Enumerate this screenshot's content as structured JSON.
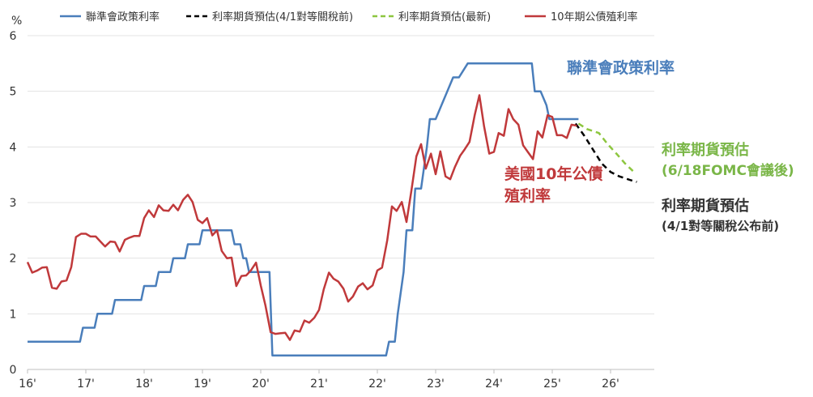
{
  "chart_data": {
    "type": "line",
    "ylabel": "%",
    "ylim": [
      0,
      6
    ],
    "yticks": [
      "0",
      "1",
      "2",
      "3",
      "4",
      "5",
      "6"
    ],
    "xlim": [
      2016,
      2026.75
    ],
    "xticks": [
      {
        "x": 2016,
        "label": "16'"
      },
      {
        "x": 2017,
        "label": "17'"
      },
      {
        "x": 2018,
        "label": "18'"
      },
      {
        "x": 2019,
        "label": "19'"
      },
      {
        "x": 2020,
        "label": "20'"
      },
      {
        "x": 2021,
        "label": "21'"
      },
      {
        "x": 2022,
        "label": "22'"
      },
      {
        "x": 2023,
        "label": "23'"
      },
      {
        "x": 2024,
        "label": "24'"
      },
      {
        "x": 2025,
        "label": "25'"
      },
      {
        "x": 2026,
        "label": "26'"
      }
    ],
    "grid": "horizontal",
    "legend": "top",
    "series": [
      {
        "name": "聯準會政策利率",
        "color": "#4a7ebb",
        "style": "solid",
        "points": [
          [
            2016.0,
            0.5
          ],
          [
            2016.9,
            0.5
          ],
          [
            2016.95,
            0.75
          ],
          [
            2017.15,
            0.75
          ],
          [
            2017.2,
            1.0
          ],
          [
            2017.45,
            1.0
          ],
          [
            2017.5,
            1.25
          ],
          [
            2017.95,
            1.25
          ],
          [
            2018.0,
            1.5
          ],
          [
            2018.2,
            1.5
          ],
          [
            2018.25,
            1.75
          ],
          [
            2018.45,
            1.75
          ],
          [
            2018.5,
            2.0
          ],
          [
            2018.7,
            2.0
          ],
          [
            2018.75,
            2.25
          ],
          [
            2018.95,
            2.25
          ],
          [
            2019.0,
            2.5
          ],
          [
            2019.5,
            2.5
          ],
          [
            2019.55,
            2.25
          ],
          [
            2019.65,
            2.25
          ],
          [
            2019.7,
            2.0
          ],
          [
            2019.75,
            2.0
          ],
          [
            2019.8,
            1.75
          ],
          [
            2020.15,
            1.75
          ],
          [
            2020.2,
            0.25
          ],
          [
            2022.15,
            0.25
          ],
          [
            2022.2,
            0.5
          ],
          [
            2022.3,
            0.5
          ],
          [
            2022.35,
            1.0
          ],
          [
            2022.45,
            1.75
          ],
          [
            2022.5,
            2.5
          ],
          [
            2022.6,
            2.5
          ],
          [
            2022.65,
            3.25
          ],
          [
            2022.75,
            3.25
          ],
          [
            2022.85,
            4.0
          ],
          [
            2022.9,
            4.5
          ],
          [
            2023.0,
            4.5
          ],
          [
            2023.1,
            4.75
          ],
          [
            2023.2,
            5.0
          ],
          [
            2023.3,
            5.25
          ],
          [
            2023.4,
            5.25
          ],
          [
            2023.55,
            5.5
          ],
          [
            2024.65,
            5.5
          ],
          [
            2024.7,
            5.0
          ],
          [
            2024.8,
            5.0
          ],
          [
            2024.9,
            4.75
          ],
          [
            2024.95,
            4.5
          ],
          [
            2025.45,
            4.5
          ]
        ]
      },
      {
        "name": "利率期貨預估(4/1對等關稅前)",
        "color": "#000000",
        "style": "dashed",
        "points": [
          [
            2025.4,
            4.42
          ],
          [
            2025.55,
            4.2
          ],
          [
            2025.7,
            3.95
          ],
          [
            2025.85,
            3.7
          ],
          [
            2026.0,
            3.55
          ],
          [
            2026.15,
            3.47
          ],
          [
            2026.35,
            3.4
          ],
          [
            2026.45,
            3.37
          ]
        ]
      },
      {
        "name": "利率期貨預估(最新)",
        "color": "#8dc63f",
        "style": "dashed",
        "points": [
          [
            2025.45,
            4.42
          ],
          [
            2025.6,
            4.32
          ],
          [
            2025.8,
            4.25
          ],
          [
            2025.95,
            4.05
          ],
          [
            2026.1,
            3.88
          ],
          [
            2026.25,
            3.7
          ],
          [
            2026.4,
            3.55
          ]
        ]
      },
      {
        "name": "10年期公債殖利率",
        "color": "#c0393b",
        "style": "solid",
        "points": [
          [
            2016.0,
            1.93
          ],
          [
            2016.08,
            1.74
          ],
          [
            2016.17,
            1.78
          ],
          [
            2016.25,
            1.83
          ],
          [
            2016.33,
            1.84
          ],
          [
            2016.42,
            1.47
          ],
          [
            2016.5,
            1.45
          ],
          [
            2016.58,
            1.58
          ],
          [
            2016.67,
            1.6
          ],
          [
            2016.75,
            1.84
          ],
          [
            2016.83,
            2.38
          ],
          [
            2016.92,
            2.44
          ],
          [
            2017.0,
            2.44
          ],
          [
            2017.08,
            2.39
          ],
          [
            2017.17,
            2.39
          ],
          [
            2017.25,
            2.3
          ],
          [
            2017.33,
            2.21
          ],
          [
            2017.42,
            2.3
          ],
          [
            2017.5,
            2.29
          ],
          [
            2017.58,
            2.12
          ],
          [
            2017.67,
            2.33
          ],
          [
            2017.75,
            2.37
          ],
          [
            2017.83,
            2.4
          ],
          [
            2017.92,
            2.4
          ],
          [
            2018.0,
            2.72
          ],
          [
            2018.08,
            2.86
          ],
          [
            2018.17,
            2.74
          ],
          [
            2018.25,
            2.95
          ],
          [
            2018.33,
            2.86
          ],
          [
            2018.42,
            2.85
          ],
          [
            2018.5,
            2.96
          ],
          [
            2018.58,
            2.86
          ],
          [
            2018.67,
            3.05
          ],
          [
            2018.75,
            3.14
          ],
          [
            2018.83,
            3.01
          ],
          [
            2018.92,
            2.69
          ],
          [
            2019.0,
            2.63
          ],
          [
            2019.08,
            2.72
          ],
          [
            2019.17,
            2.41
          ],
          [
            2019.25,
            2.5
          ],
          [
            2019.33,
            2.13
          ],
          [
            2019.42,
            2.0
          ],
          [
            2019.5,
            2.01
          ],
          [
            2019.58,
            1.5
          ],
          [
            2019.67,
            1.68
          ],
          [
            2019.75,
            1.69
          ],
          [
            2019.83,
            1.78
          ],
          [
            2019.92,
            1.92
          ],
          [
            2020.0,
            1.51
          ],
          [
            2020.08,
            1.15
          ],
          [
            2020.17,
            0.67
          ],
          [
            2020.25,
            0.64
          ],
          [
            2020.33,
            0.65
          ],
          [
            2020.42,
            0.66
          ],
          [
            2020.5,
            0.53
          ],
          [
            2020.58,
            0.7
          ],
          [
            2020.67,
            0.68
          ],
          [
            2020.75,
            0.88
          ],
          [
            2020.83,
            0.84
          ],
          [
            2020.92,
            0.93
          ],
          [
            2021.0,
            1.07
          ],
          [
            2021.08,
            1.44
          ],
          [
            2021.17,
            1.74
          ],
          [
            2021.25,
            1.63
          ],
          [
            2021.33,
            1.58
          ],
          [
            2021.42,
            1.45
          ],
          [
            2021.5,
            1.22
          ],
          [
            2021.58,
            1.31
          ],
          [
            2021.67,
            1.49
          ],
          [
            2021.75,
            1.55
          ],
          [
            2021.83,
            1.44
          ],
          [
            2021.92,
            1.51
          ],
          [
            2022.0,
            1.78
          ],
          [
            2022.08,
            1.83
          ],
          [
            2022.17,
            2.32
          ],
          [
            2022.25,
            2.93
          ],
          [
            2022.33,
            2.85
          ],
          [
            2022.42,
            3.01
          ],
          [
            2022.5,
            2.65
          ],
          [
            2022.58,
            3.19
          ],
          [
            2022.67,
            3.83
          ],
          [
            2022.75,
            4.05
          ],
          [
            2022.83,
            3.61
          ],
          [
            2022.92,
            3.88
          ],
          [
            2023.0,
            3.51
          ],
          [
            2023.08,
            3.92
          ],
          [
            2023.17,
            3.47
          ],
          [
            2023.25,
            3.42
          ],
          [
            2023.33,
            3.64
          ],
          [
            2023.42,
            3.84
          ],
          [
            2023.5,
            3.96
          ],
          [
            2023.58,
            4.09
          ],
          [
            2023.67,
            4.57
          ],
          [
            2023.75,
            4.93
          ],
          [
            2023.83,
            4.37
          ],
          [
            2023.92,
            3.88
          ],
          [
            2024.0,
            3.91
          ],
          [
            2024.08,
            4.25
          ],
          [
            2024.17,
            4.2
          ],
          [
            2024.25,
            4.68
          ],
          [
            2024.33,
            4.5
          ],
          [
            2024.42,
            4.4
          ],
          [
            2024.5,
            4.03
          ],
          [
            2024.58,
            3.91
          ],
          [
            2024.67,
            3.78
          ],
          [
            2024.75,
            4.28
          ],
          [
            2024.83,
            4.17
          ],
          [
            2024.92,
            4.57
          ],
          [
            2025.0,
            4.54
          ],
          [
            2025.08,
            4.21
          ],
          [
            2025.17,
            4.21
          ],
          [
            2025.25,
            4.16
          ],
          [
            2025.33,
            4.4
          ],
          [
            2025.42,
            4.38
          ]
        ]
      }
    ],
    "annotations": [
      {
        "text": "聯準會政策利率",
        "color": "#4a7ebb"
      },
      {
        "text": "美國10年公債",
        "color": "#c0393b"
      },
      {
        "text": "殖利率",
        "color": "#c0393b"
      },
      {
        "text": "利率期貨預估",
        "color": "#7ab648"
      },
      {
        "text": "(6/18FOMC會議後)",
        "color": "#7ab648"
      },
      {
        "text": "利率期貨預估",
        "color": "#333333"
      },
      {
        "text": "(4/1對等關稅公布前)",
        "color": "#333333"
      }
    ]
  }
}
